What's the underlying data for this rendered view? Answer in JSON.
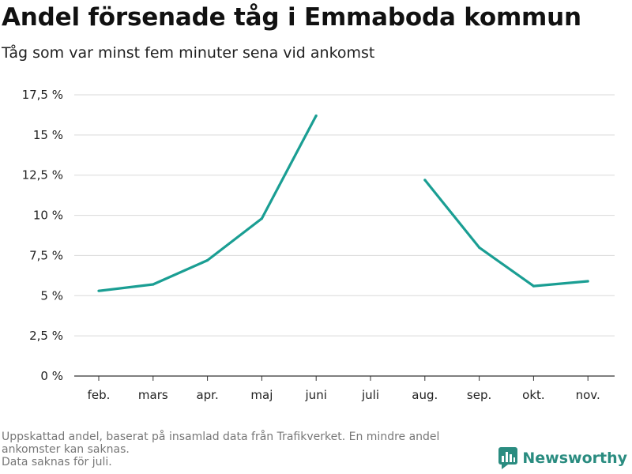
{
  "chart_data": {
    "type": "line",
    "title": "Andel försenade tåg i Emmaboda kommun",
    "subtitle": "Tåg som var minst fem minuter sena vid ankomst",
    "categories": [
      "feb.",
      "mars",
      "apr.",
      "maj",
      "juni",
      "juli",
      "aug.",
      "sep.",
      "okt.",
      "nov."
    ],
    "series": [
      {
        "values": [
          5.3,
          5.7,
          7.2,
          9.8,
          16.2,
          null,
          12.2,
          8.0,
          5.6,
          5.9
        ]
      }
    ],
    "ylim": [
      0,
      17.5
    ],
    "y_ticks": [
      0,
      2.5,
      5,
      7.5,
      10,
      12.5,
      15,
      17.5
    ],
    "y_tick_labels": [
      "0 %",
      "2,5 %",
      "5 %",
      "7,5 %",
      "10 %",
      "12,5 %",
      "15 %",
      "17,5 %"
    ],
    "xlabel": "",
    "ylabel": "",
    "grid": true,
    "line_color": "#1a9e93"
  },
  "footnote": {
    "lines": [
      "Uppskattad andel, baserat på insamlad data från Trafikverket. En mindre andel",
      "ankomster kan saknas.",
      "Data saknas för juli."
    ]
  },
  "brand": {
    "name": "Newsworthy",
    "icon": "newsworthy-logo-icon",
    "color": "#2a8c80"
  }
}
